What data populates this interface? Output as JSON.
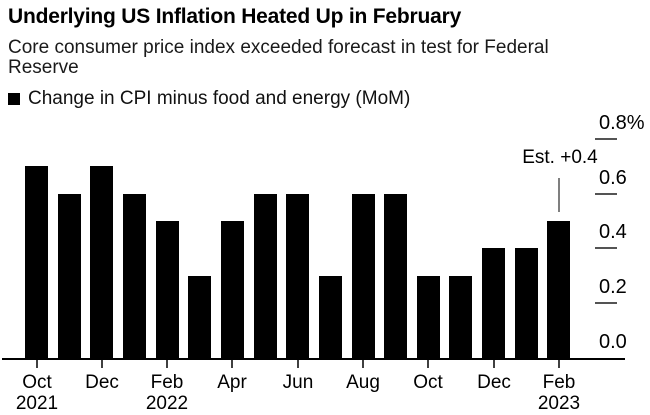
{
  "header": {
    "title": "Underlying US Inflation Heated Up in February",
    "subtitle": "Core consumer price index exceeded forecast in test for Federal Reserve"
  },
  "legend": {
    "swatch_icon": "black-square-icon",
    "label": "Change in CPI minus food and energy (MoM)"
  },
  "annotation": {
    "label": "Est. +0.4"
  },
  "colors": {
    "bar": "#000000",
    "axis": "#000000",
    "x_tick": "#404040",
    "y_tick_dash": "#545454",
    "annotation_line": "#7f7f7f",
    "background": "#ffffff",
    "text": "#000000"
  },
  "chart_data": {
    "type": "bar",
    "title": "Underlying US Inflation Heated Up in February",
    "subtitle": "Core consumer price index exceeded forecast in test for Federal Reserve",
    "series_label": "Change in CPI minus food and energy (MoM)",
    "unit": "%",
    "categories": [
      "Oct 2021",
      "Nov 2021",
      "Dec 2021",
      "Jan 2022",
      "Feb 2022",
      "Mar 2022",
      "Apr 2022",
      "May 2022",
      "Jun 2022",
      "Jul 2022",
      "Aug 2022",
      "Sep 2022",
      "Oct 2022",
      "Nov 2022",
      "Dec 2022",
      "Jan 2023",
      "Feb 2023"
    ],
    "values": [
      0.7,
      0.6,
      0.7,
      0.6,
      0.5,
      0.3,
      0.5,
      0.6,
      0.6,
      0.3,
      0.6,
      0.6,
      0.3,
      0.3,
      0.4,
      0.4,
      0.5
    ],
    "ylim": [
      0,
      0.8
    ],
    "yticks": [
      {
        "label": "0.8%",
        "value": 0.8
      },
      {
        "label": "0.6",
        "value": 0.6
      },
      {
        "label": "0.4",
        "value": 0.4
      },
      {
        "label": "0.2",
        "value": 0.2
      },
      {
        "label": "0.0",
        "value": 0.0
      }
    ],
    "xticks": [
      {
        "index": 0,
        "month": "Oct",
        "year": "2021"
      },
      {
        "index": 2,
        "month": "Dec",
        "year": ""
      },
      {
        "index": 4,
        "month": "Feb",
        "year": "2022"
      },
      {
        "index": 6,
        "month": "Apr",
        "year": ""
      },
      {
        "index": 8,
        "month": "Jun",
        "year": ""
      },
      {
        "index": 10,
        "month": "Aug",
        "year": ""
      },
      {
        "index": 12,
        "month": "Oct",
        "year": ""
      },
      {
        "index": 14,
        "month": "Dec",
        "year": ""
      },
      {
        "index": 16,
        "month": "Feb",
        "year": "2023"
      }
    ],
    "grid": false,
    "legend_position": "top-left",
    "value_axis_side": "right",
    "annotation": {
      "text": "Est. +0.4",
      "target_category": "Feb 2023",
      "estimate_value": 0.4
    }
  }
}
